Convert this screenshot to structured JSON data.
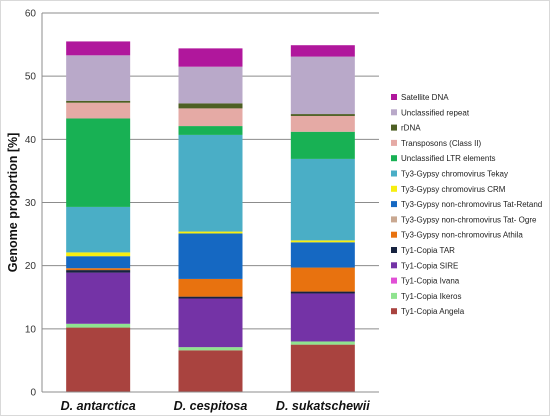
{
  "chart_data": {
    "type": "bar",
    "stacked": true,
    "ylabel": "Genome proportion [%]",
    "ylim": [
      0,
      60
    ],
    "yticks": [
      0,
      10,
      20,
      30,
      40,
      50,
      60
    ],
    "grid": true,
    "legend_position": "right",
    "categories": [
      "D. antarctica",
      "D. cespitosa",
      "D. sukatschewii"
    ],
    "series": [
      {
        "name": "Ty1-Copia Angela",
        "color": "#a9433f",
        "values": [
          10.2,
          6.6,
          7.5
        ]
      },
      {
        "name": "Ty1-Copia Ikeros",
        "color": "#8fe38f",
        "values": [
          0.6,
          0.5,
          0.5
        ]
      },
      {
        "name": "Ty1-Copia Ivana",
        "color": "#e14fd6",
        "values": [
          0.0,
          0.0,
          0.0
        ]
      },
      {
        "name": "Ty1-Copia SIRE",
        "color": "#7433a6",
        "values": [
          8.1,
          7.7,
          7.6
        ]
      },
      {
        "name": "Ty1-Copia TAR",
        "color": "#17233f",
        "values": [
          0.4,
          0.3,
          0.3
        ]
      },
      {
        "name": "Ty3-Gypsy non-chromovirus Athila",
        "color": "#e8720f",
        "values": [
          0.3,
          2.8,
          3.8
        ]
      },
      {
        "name": "Ty3-Gypsy non-chromovirus Tat- Ogre",
        "color": "#c9a891",
        "values": [
          0.0,
          0.0,
          0.0
        ]
      },
      {
        "name": "Ty3-Gypsy non-chromovirus Tat-Retand",
        "color": "#1568c2",
        "values": [
          1.9,
          7.2,
          4.0
        ]
      },
      {
        "name": "Ty3-Gypsy chromovirus CRM",
        "color": "#f7ee10",
        "values": [
          0.6,
          0.3,
          0.3
        ]
      },
      {
        "name": "Ty3-Gypsy chromovirus Tekay",
        "color": "#4aaec6",
        "values": [
          7.2,
          15.3,
          12.9
        ]
      },
      {
        "name": "Unclassified LTR elements",
        "color": "#18b154",
        "values": [
          14.0,
          1.4,
          4.3
        ]
      },
      {
        "name": "Transposons (Class II)",
        "color": "#e5aaa5",
        "values": [
          2.5,
          2.8,
          2.5
        ]
      },
      {
        "name": "rDNA",
        "color": "#4d5f23",
        "values": [
          0.3,
          0.8,
          0.3
        ]
      },
      {
        "name": "Unclassified repeat",
        "color": "#b9a9c9",
        "values": [
          7.2,
          5.8,
          9.1
        ]
      },
      {
        "name": "Satellite DNA",
        "color": "#b0179c",
        "values": [
          2.2,
          2.9,
          1.8
        ]
      }
    ]
  }
}
